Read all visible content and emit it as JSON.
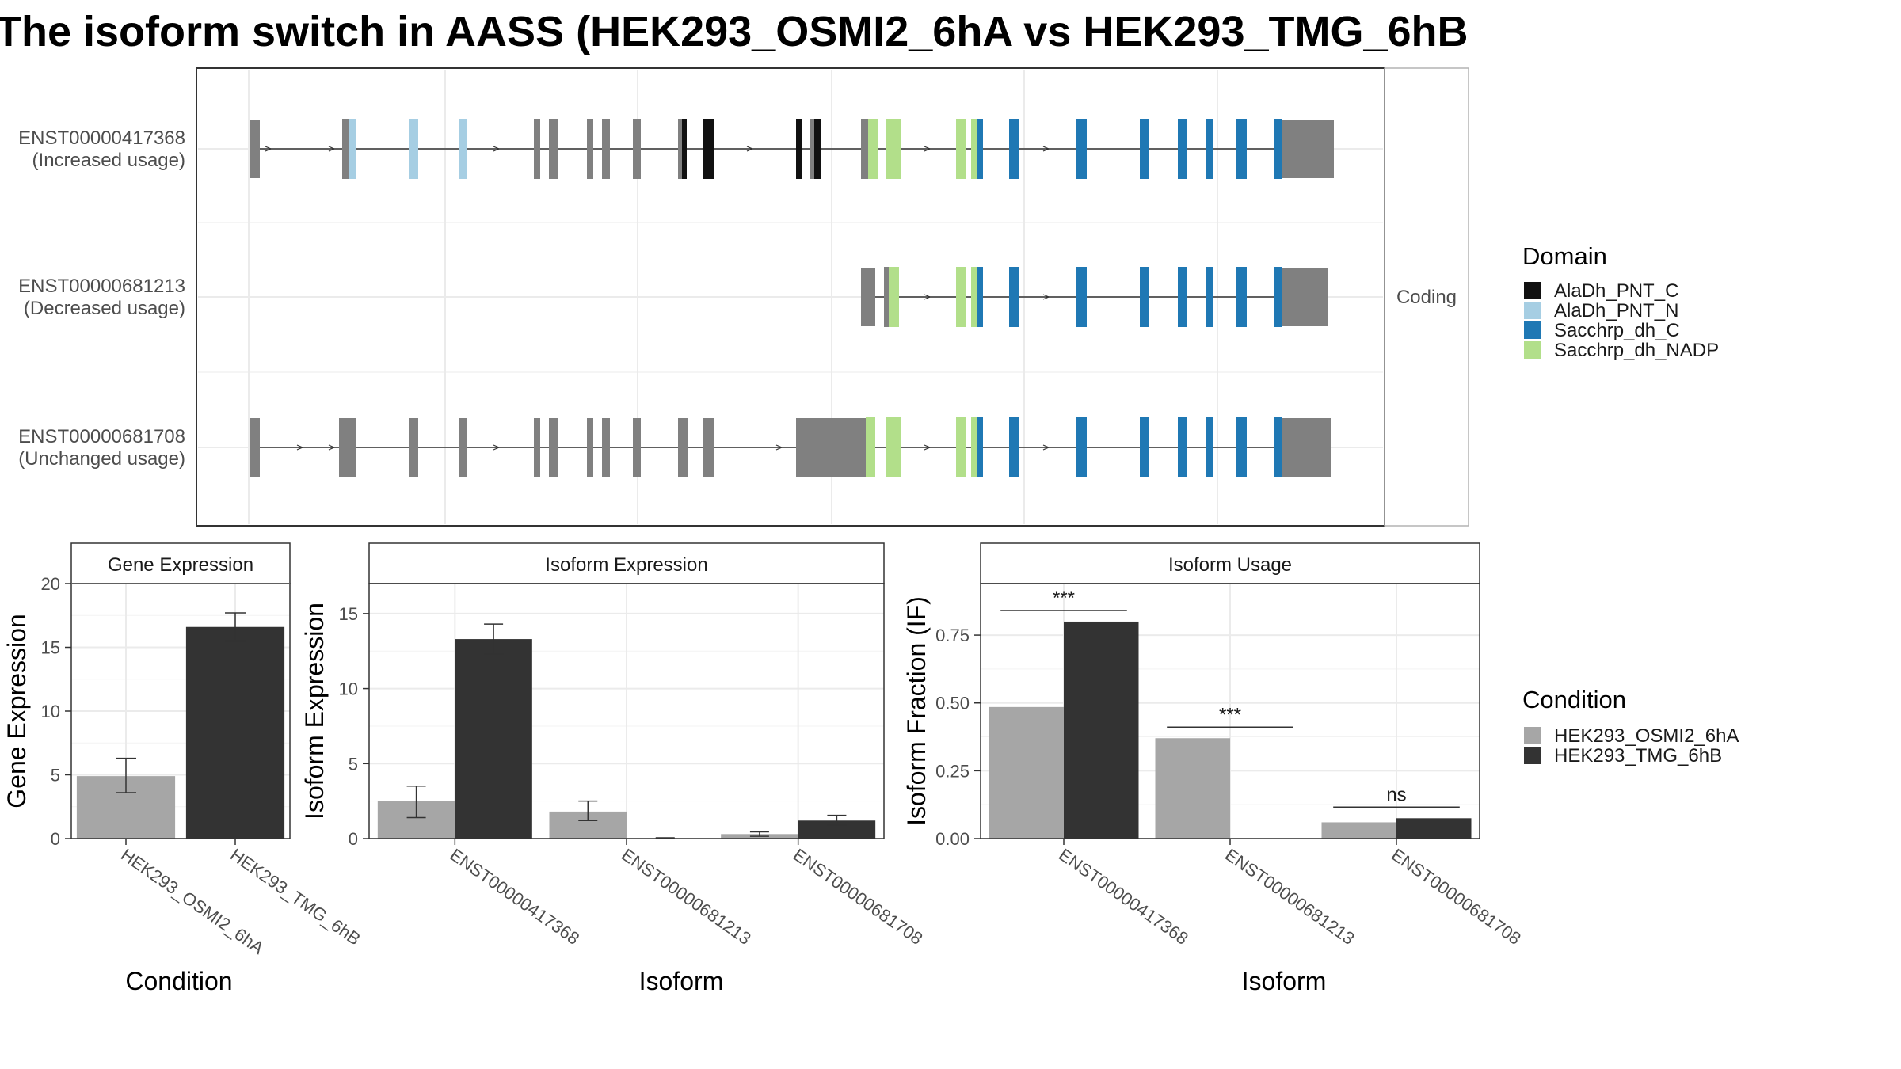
{
  "title": "The isoform switch in AASS (HEK293_OSMI2_6hA vs HEK293_TMG_6hB",
  "colors": {
    "AlaDh_PNT_C": "#111111",
    "AlaDh_PNT_N": "#a6cee3",
    "Sacchrp_dh_C": "#1f78b4",
    "Sacchrp_dh_NADP": "#b2df8a",
    "no_domain": "#808080",
    "HEK293_OSMI2_6hA": "#a6a6a6",
    "HEK293_TMG_6hB": "#333333"
  },
  "structure_panel": {
    "facet_label": "Coding",
    "transcripts": [
      {
        "id": "ENST00000417368",
        "usage": "(Increased usage)"
      },
      {
        "id": "ENST00000681213",
        "usage": "(Decreased usage)"
      },
      {
        "id": "ENST00000681708",
        "usage": "(Unchanged usage)"
      }
    ]
  },
  "domain_legend": {
    "title": "Domain",
    "items": [
      "AlaDh_PNT_C",
      "AlaDh_PNT_N",
      "Sacchrp_dh_C",
      "Sacchrp_dh_NADP"
    ]
  },
  "condition_legend": {
    "title": "Condition",
    "items": [
      "HEK293_OSMI2_6hA",
      "HEK293_TMG_6hB"
    ]
  },
  "chart_data": [
    {
      "type": "bar",
      "title": "Gene Expression",
      "xlabel": "Condition",
      "ylabel": "Gene Expression",
      "categories": [
        "HEK293_OSMI2_6hA",
        "HEK293_TMG_6hB"
      ],
      "values": [
        4.9,
        16.6
      ],
      "error_low": [
        3.6,
        15.5
      ],
      "error_high": [
        6.3,
        17.7
      ],
      "ylim": [
        0,
        20
      ],
      "yticks": [
        0,
        5,
        10,
        15,
        20
      ]
    },
    {
      "type": "bar",
      "title": "Isoform Expression",
      "xlabel": "Isoform",
      "ylabel": "Isoform Expression",
      "categories": [
        "ENST00000417368",
        "ENST00000681213",
        "ENST00000681708"
      ],
      "series": [
        {
          "name": "HEK293_OSMI2_6hA",
          "values": [
            2.5,
            1.8,
            0.3
          ],
          "error_low": [
            1.4,
            1.2,
            0.15
          ],
          "error_high": [
            3.5,
            2.5,
            0.45
          ]
        },
        {
          "name": "HEK293_TMG_6hB",
          "values": [
            13.3,
            0.0,
            1.2
          ],
          "error_low": [
            12.3,
            0.0,
            0.9
          ],
          "error_high": [
            14.3,
            0.05,
            1.55
          ]
        }
      ],
      "ylim": [
        0,
        17
      ],
      "yticks": [
        0,
        5,
        10,
        15
      ]
    },
    {
      "type": "bar",
      "title": "Isoform Usage",
      "xlabel": "Isoform",
      "ylabel": "Isoform Fraction (IF)",
      "categories": [
        "ENST00000417368",
        "ENST00000681213",
        "ENST00000681708"
      ],
      "series": [
        {
          "name": "HEK293_OSMI2_6hA",
          "values": [
            0.485,
            0.37,
            0.06
          ]
        },
        {
          "name": "HEK293_TMG_6hB",
          "values": [
            0.8,
            0.0,
            0.075
          ]
        }
      ],
      "significance": [
        "***",
        "***",
        "ns"
      ],
      "ylim": [
        0,
        0.94
      ],
      "yticks": [
        0.0,
        0.25,
        0.5,
        0.75
      ],
      "ytick_labels": [
        "0.00",
        "0.25",
        "0.50",
        "0.75"
      ]
    }
  ]
}
